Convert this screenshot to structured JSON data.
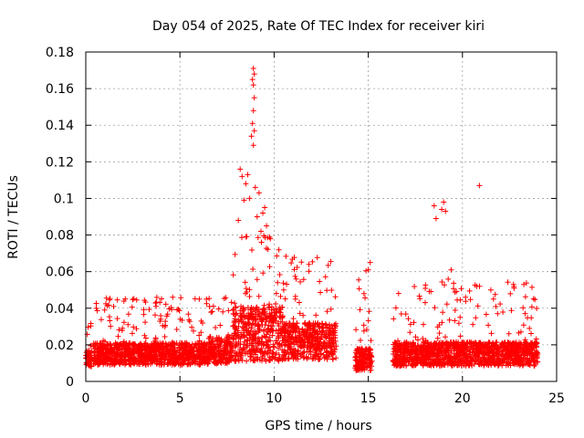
{
  "chart_data": {
    "type": "scatter",
    "title": "Day 054 of 2025, Rate Of TEC Index for receiver kiri",
    "xlabel": "GPS time / hours",
    "ylabel": "ROTI / TECUs",
    "xlim": [
      0,
      25
    ],
    "ylim": [
      0,
      0.18
    ],
    "x_ticks": [
      0,
      5,
      10,
      15,
      20,
      25
    ],
    "y_ticks": [
      0,
      0.02,
      0.04,
      0.06,
      0.08,
      0.1,
      0.12,
      0.14,
      0.16,
      0.18
    ],
    "x_tick_labels": [
      "0",
      "5",
      "10",
      "15",
      "20",
      "25"
    ],
    "y_tick_labels": [
      "0",
      "0.02",
      "0.04",
      "0.06",
      "0.08",
      "0.1",
      "0.12",
      "0.14",
      "0.16",
      "0.18"
    ],
    "grid": true,
    "marker": "+",
    "series_color": "#ff0000",
    "series": [
      {
        "name": "ROTI",
        "segments": [
          {
            "x_start": 0.0,
            "x_end": 0.3,
            "base": 0.012,
            "spread": 0.01,
            "peak": 0.035
          },
          {
            "x_start": 0.4,
            "x_end": 6.5,
            "base": 0.015,
            "spread": 0.012,
            "peak": 0.046
          },
          {
            "x_start": 6.5,
            "x_end": 7.8,
            "base": 0.017,
            "spread": 0.015,
            "peak": 0.05
          },
          {
            "x_start": 7.8,
            "x_end": 10.5,
            "base": 0.026,
            "spread": 0.03,
            "peak": 0.08
          },
          {
            "x_start": 10.5,
            "x_end": 13.3,
            "base": 0.022,
            "spread": 0.02,
            "peak": 0.072
          },
          {
            "x_start": 14.3,
            "x_end": 15.2,
            "base": 0.012,
            "spread": 0.012,
            "peak": 0.065
          },
          {
            "x_start": 16.3,
            "x_end": 24.0,
            "base": 0.015,
            "spread": 0.013,
            "peak": 0.056
          }
        ],
        "highlights": [
          [
            8.9,
            0.171
          ],
          [
            8.95,
            0.168
          ],
          [
            8.85,
            0.165
          ],
          [
            8.9,
            0.162
          ],
          [
            8.95,
            0.155
          ],
          [
            8.9,
            0.148
          ],
          [
            8.85,
            0.141
          ],
          [
            8.95,
            0.137
          ],
          [
            8.9,
            0.129
          ],
          [
            8.8,
            0.134
          ],
          [
            8.2,
            0.116
          ],
          [
            8.3,
            0.112
          ],
          [
            8.5,
            0.108
          ],
          [
            8.6,
            0.113
          ],
          [
            9.0,
            0.106
          ],
          [
            9.2,
            0.103
          ],
          [
            9.5,
            0.095
          ],
          [
            9.4,
            0.092
          ],
          [
            9.1,
            0.09
          ],
          [
            8.4,
            0.099
          ],
          [
            8.7,
            0.1
          ],
          [
            9.6,
            0.085
          ],
          [
            9.3,
            0.082
          ],
          [
            8.1,
            0.088
          ],
          [
            9.8,
            0.078
          ],
          [
            18.5,
            0.096
          ],
          [
            18.6,
            0.089
          ],
          [
            18.9,
            0.094
          ],
          [
            19.0,
            0.098
          ],
          [
            19.1,
            0.093
          ],
          [
            20.9,
            0.107
          ],
          [
            19.4,
            0.061
          ],
          [
            15.1,
            0.065
          ],
          [
            15.0,
            0.061
          ]
        ]
      }
    ]
  }
}
